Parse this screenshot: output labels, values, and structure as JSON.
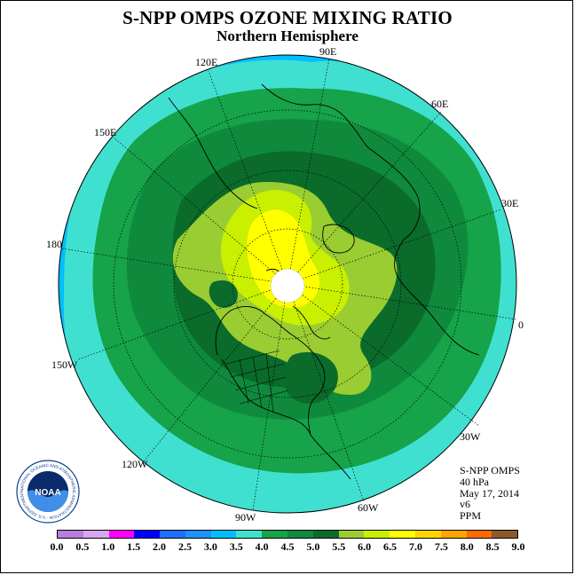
{
  "title": "S-NPP OMPS OZONE MIXING RATIO",
  "subtitle": "Northern Hemisphere",
  "longitude_labels": [
    "90E",
    "60E",
    "30E",
    "0",
    "30W",
    "60W",
    "90W",
    "120W",
    "150W",
    "180",
    "150E",
    "120E"
  ],
  "info": {
    "instrument": "S-NPP OMPS",
    "level": "40 hPa",
    "date": "May 17, 2014",
    "version": "v6",
    "units": "PPM"
  },
  "logo": {
    "name": "noaa-logo",
    "text": "NOAA",
    "ring_text": "NATIONAL OCEANIC AND ATMOSPHERIC ADMINISTRATION · U.S. DEPARTMENT OF COMMERCE"
  },
  "colorbar": {
    "ticks": [
      "0.0",
      "0.5",
      "1.0",
      "1.5",
      "2.0",
      "2.5",
      "3.0",
      "3.5",
      "4.0",
      "4.5",
      "5.0",
      "5.5",
      "6.0",
      "6.5",
      "7.0",
      "7.5",
      "8.0",
      "8.5",
      "9.0"
    ],
    "colors": [
      "#b57edc",
      "#d8a6f0",
      "#ff00ff",
      "#0000ff",
      "#1e6fff",
      "#1e90ff",
      "#00bfff",
      "#40e0d0",
      "#16a34a",
      "#0f8a3c",
      "#0a6b2b",
      "#9acd32",
      "#c8f000",
      "#ffff00",
      "#ffd700",
      "#ffa500",
      "#ff6a00",
      "#ff0000",
      "#8b5a2b"
    ]
  },
  "map": {
    "projection": "north-polar-stereographic",
    "contour_levels_ppm": [
      "3.0",
      "3.5",
      "4.0",
      "4.5",
      "5.0",
      "5.5",
      "6.0",
      "6.5"
    ],
    "pole_no_data": true
  }
}
